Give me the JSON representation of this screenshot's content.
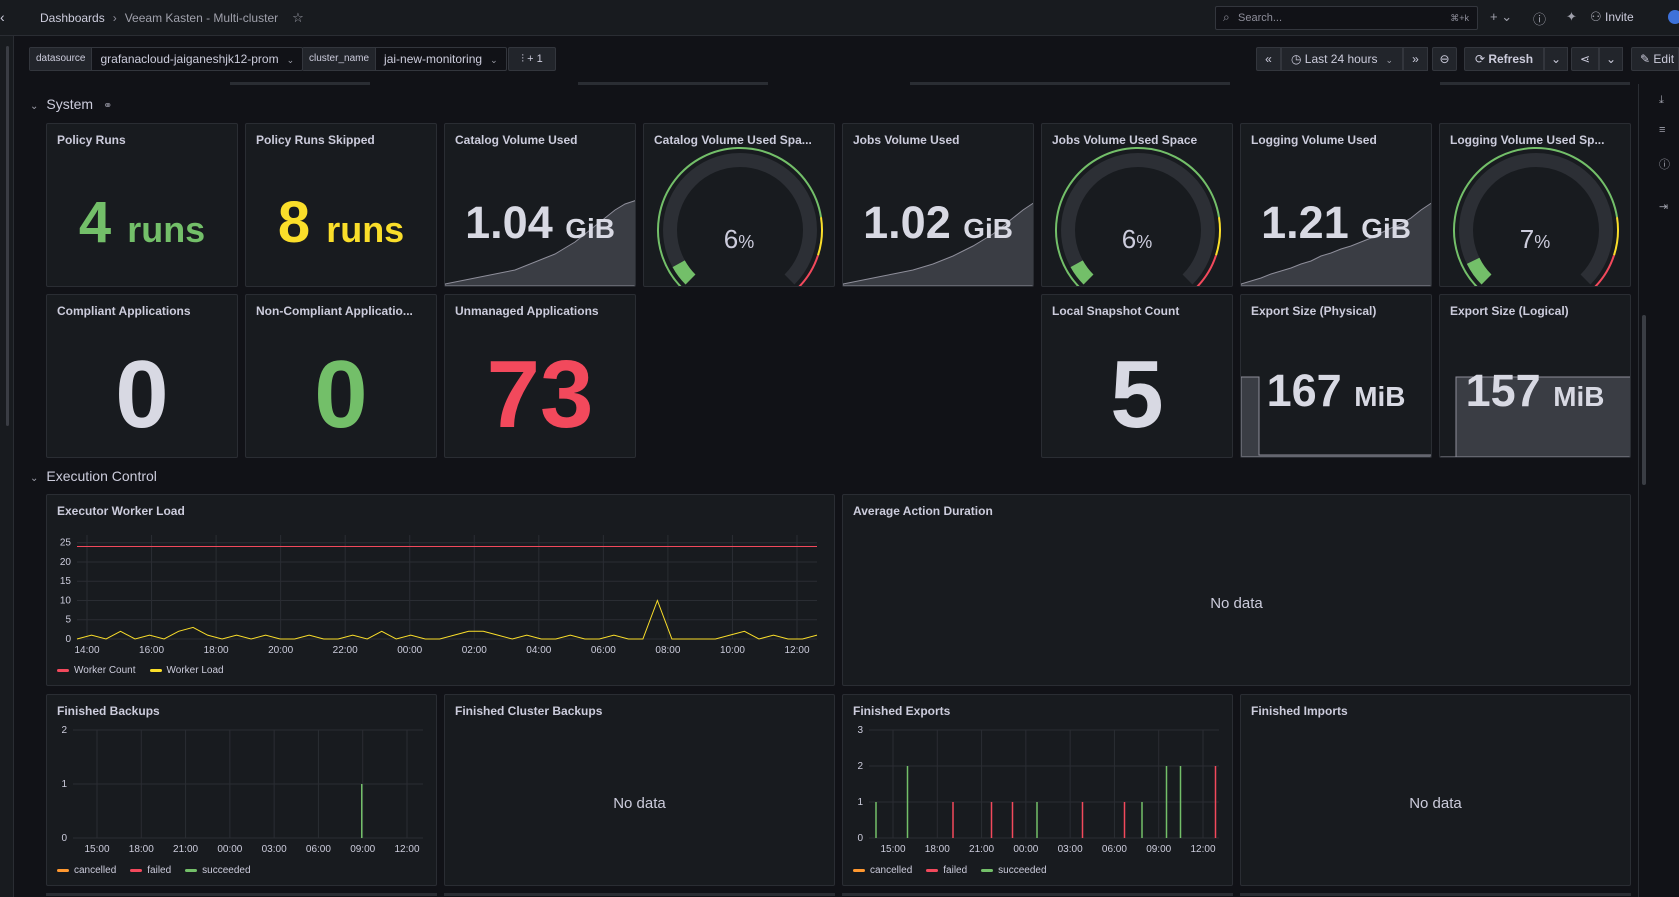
{
  "topbar": {
    "breadcrumb_root": "Dashboards",
    "breadcrumb_separator": "›",
    "dashboard_title": "Veeam Kasten - Multi-cluster",
    "search_placeholder": "Search...",
    "search_shortcut": "⌘+k",
    "invite_label": "Invite"
  },
  "variables": [
    {
      "label": "datasource",
      "value": "grafanacloud-jaiganeshjk12-prom"
    },
    {
      "label": "cluster_name",
      "value": "jai-new-monitoring"
    }
  ],
  "filter_button_label": "+ 1",
  "time_controls": {
    "range_label": "Last 24 hours",
    "refresh_label": "Refresh",
    "edit_label": "Edit"
  },
  "rows": {
    "system": "System",
    "execution": "Execution Control"
  },
  "stats": {
    "policy_runs": {
      "title": "Policy Runs",
      "value": "4",
      "unit": "runs",
      "color": "#73bf69"
    },
    "policy_runs_skipped": {
      "title": "Policy Runs Skipped",
      "value": "8",
      "unit": "runs",
      "color": "#fade2a"
    },
    "catalog_volume_used": {
      "title": "Catalog Volume Used",
      "value": "1.04",
      "unit": "GiB"
    },
    "catalog_volume_space": {
      "title": "Catalog Volume Used Spa...",
      "value": "6",
      "unit": "%",
      "fraction": 0.06
    },
    "jobs_volume_used": {
      "title": "Jobs Volume Used",
      "value": "1.02",
      "unit": "GiB"
    },
    "jobs_volume_space": {
      "title": "Jobs Volume Used Space",
      "value": "6",
      "unit": "%",
      "fraction": 0.06
    },
    "logging_volume_used": {
      "title": "Logging Volume Used",
      "value": "1.21",
      "unit": "GiB"
    },
    "logging_volume_space": {
      "title": "Logging Volume Used Sp...",
      "value": "7",
      "unit": "%",
      "fraction": 0.07
    },
    "compliant_apps": {
      "title": "Compliant Applications",
      "value": "0",
      "color": "#d8d9e3"
    },
    "non_compliant_apps": {
      "title": "Non-Compliant Applicatio...",
      "value": "0",
      "color": "#73bf69"
    },
    "unmanaged_apps": {
      "title": "Unmanaged Applications",
      "value": "73",
      "color": "#f2495c"
    },
    "local_snapshot_count": {
      "title": "Local Snapshot Count",
      "value": "5",
      "color": "#d8d9e3"
    },
    "export_physical": {
      "title": "Export Size (Physical)",
      "value": "167",
      "unit": "MiB"
    },
    "export_logical": {
      "title": "Export Size (Logical)",
      "value": "157",
      "unit": "MiB"
    }
  },
  "panels": {
    "executor_worker_load": "Executor Worker Load",
    "average_action_duration": "Average Action Duration",
    "finished_backups": "Finished Backups",
    "finished_cluster_backups": "Finished Cluster Backups",
    "finished_exports": "Finished Exports",
    "finished_imports": "Finished Imports",
    "no_data": "No data"
  },
  "colors": {
    "green": "#73bf69",
    "yellow": "#fade2a",
    "red": "#f2495c",
    "orange": "#ff9830"
  },
  "chart_data": [
    {
      "type": "line",
      "title": "Executor Worker Load",
      "x_ticks": [
        "14:00",
        "16:00",
        "18:00",
        "20:00",
        "22:00",
        "00:00",
        "02:00",
        "04:00",
        "06:00",
        "08:00",
        "10:00",
        "12:00"
      ],
      "y_ticks": [
        0,
        5,
        10,
        15,
        20,
        25
      ],
      "ylim": [
        0,
        27
      ],
      "series": [
        {
          "name": "Worker Count",
          "color": "#f2495c",
          "values": [
            24,
            24
          ]
        },
        {
          "name": "Worker Load",
          "color": "#fade2a",
          "values": [
            0,
            1,
            0,
            2,
            0,
            1,
            0,
            2,
            3,
            1,
            0,
            1,
            0,
            1,
            0,
            0,
            1,
            0,
            0,
            1,
            0,
            2,
            0,
            1,
            0,
            0,
            1,
            2,
            2,
            1,
            0,
            1,
            0,
            0,
            1,
            0,
            0,
            1,
            0,
            0,
            10,
            0,
            0,
            0,
            0,
            1,
            2,
            0,
            1,
            0,
            0,
            1
          ]
        }
      ],
      "legend": "bottom"
    },
    {
      "type": "bar",
      "title": "Finished Backups",
      "x_ticks": [
        "15:00",
        "18:00",
        "21:00",
        "00:00",
        "03:00",
        "06:00",
        "09:00",
        "12:00"
      ],
      "y_ticks": [
        0,
        1,
        2
      ],
      "ylim": [
        0,
        2
      ],
      "series": [
        {
          "name": "cancelled",
          "color": "#ff9830",
          "points": []
        },
        {
          "name": "failed",
          "color": "#f2495c",
          "points": []
        },
        {
          "name": "succeeded",
          "color": "#73bf69",
          "points": [
            {
              "t": 0.825,
              "v": 1
            }
          ]
        }
      ],
      "legend": "bottom"
    },
    {
      "type": "bar",
      "title": "Finished Exports",
      "x_ticks": [
        "15:00",
        "18:00",
        "21:00",
        "00:00",
        "03:00",
        "06:00",
        "09:00",
        "12:00"
      ],
      "y_ticks": [
        0,
        1,
        2,
        3
      ],
      "ylim": [
        0,
        3
      ],
      "series": [
        {
          "name": "cancelled",
          "color": "#ff9830",
          "points": []
        },
        {
          "name": "failed",
          "color": "#f2495c",
          "points": [
            {
              "t": 0.24,
              "v": 1
            },
            {
              "t": 0.35,
              "v": 1
            },
            {
              "t": 0.41,
              "v": 1
            },
            {
              "t": 0.61,
              "v": 1
            },
            {
              "t": 0.73,
              "v": 1
            },
            {
              "t": 0.99,
              "v": 2
            }
          ]
        },
        {
          "name": "succeeded",
          "color": "#73bf69",
          "points": [
            {
              "t": 0.02,
              "v": 1
            },
            {
              "t": 0.11,
              "v": 2
            },
            {
              "t": 0.48,
              "v": 1
            },
            {
              "t": 0.78,
              "v": 1
            },
            {
              "t": 0.85,
              "v": 2
            },
            {
              "t": 0.89,
              "v": 2
            }
          ]
        }
      ],
      "legend": "bottom"
    }
  ]
}
